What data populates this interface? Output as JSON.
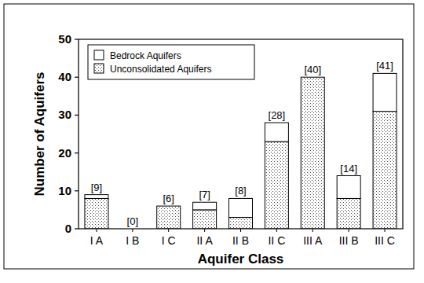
{
  "chart_data": {
    "type": "bar",
    "stacked": true,
    "x_label": "Aquifer Class",
    "y_label": "Number of Aquifers",
    "categories": [
      "I A",
      "I B",
      "I C",
      "II A",
      "II B",
      "II C",
      "III A",
      "III B",
      "III C"
    ],
    "series": [
      {
        "name": "Unconsolidated Aquifers",
        "color": "#ffffff",
        "marker": "dots",
        "values": [
          8,
          0,
          6,
          5,
          3,
          23,
          40,
          8,
          31
        ]
      },
      {
        "name": "Bedrock Aquifers",
        "color": "#ffffff",
        "values": [
          1,
          0,
          0,
          2,
          5,
          5,
          0,
          6,
          10
        ]
      }
    ],
    "total_labels": [
      "[9]",
      "[0]",
      "[6]",
      "[7]",
      "[8]",
      "[28]",
      "[40]",
      "[14]",
      "[41]"
    ],
    "ylim": [
      0,
      50
    ],
    "yticks": [
      0,
      10,
      20,
      30,
      40,
      50
    ],
    "legend": "top-left",
    "grid": false
  }
}
